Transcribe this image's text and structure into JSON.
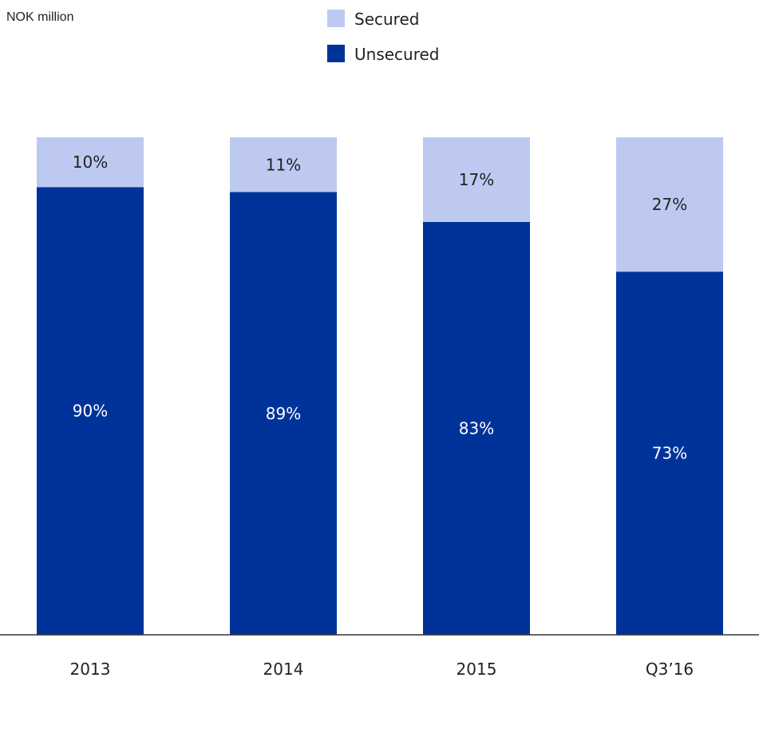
{
  "chart_data": {
    "type": "bar",
    "stacked": true,
    "normalized": true,
    "unit_label": "NOK million",
    "categories": [
      "2013",
      "2014",
      "2015",
      "Q3’16"
    ],
    "series": [
      {
        "name": "Unsecured",
        "color": "#003399",
        "label_color": "#ffffff",
        "values": [
          90,
          89,
          83,
          73
        ],
        "labels": [
          "90%",
          "89%",
          "83%",
          "73%"
        ]
      },
      {
        "name": "Secured",
        "color": "#bdc9f0",
        "label_color": "#222222",
        "values": [
          10,
          11,
          17,
          27
        ],
        "labels": [
          "10%",
          "11%",
          "17%",
          "27%"
        ]
      }
    ],
    "legend_order": [
      "Secured",
      "Unsecured"
    ],
    "legend_placement": "top-center",
    "ylim": [
      0,
      100
    ],
    "grid": false
  }
}
